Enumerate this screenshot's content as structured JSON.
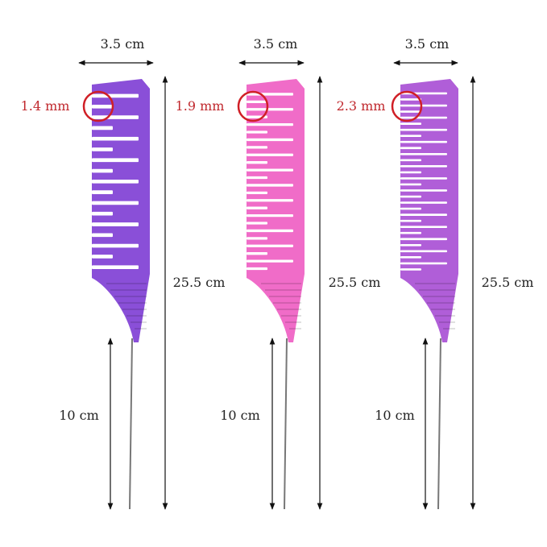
{
  "combs": [
    {
      "width_label": "3.5 cm",
      "tooth_gap_label": "1.4 mm",
      "length_label": "25.5 cm",
      "pin_label": "10 cm",
      "color": "#8a4fd8",
      "slots": 17
    },
    {
      "width_label": "3.5 cm",
      "tooth_gap_label": "1.9 mm",
      "length_label": "25.5 cm",
      "pin_label": "10 cm",
      "color": "#f06cc8",
      "slots": 24
    },
    {
      "width_label": "3.5 cm",
      "tooth_gap_label": "2.3 mm",
      "length_label": "25.5 cm",
      "pin_label": "10 cm",
      "color": "#b05ed8",
      "slots": 30
    }
  ],
  "colors": {
    "highlight": "#d01f26",
    "dimension_line": "#111111"
  }
}
